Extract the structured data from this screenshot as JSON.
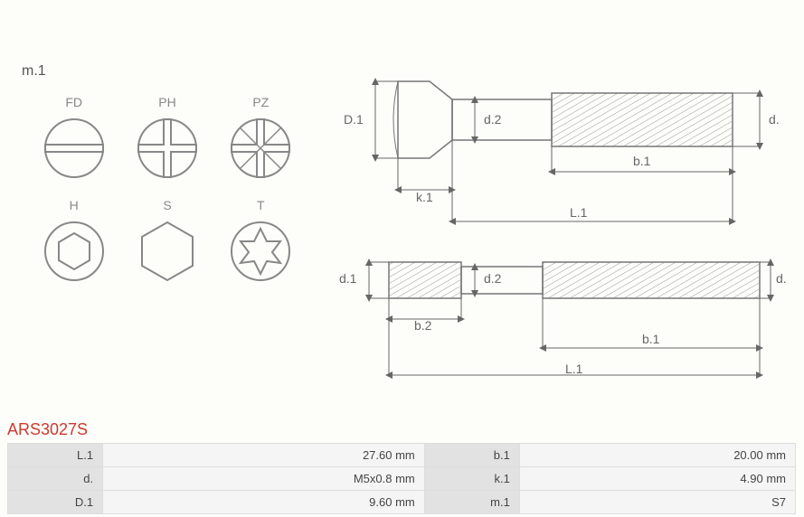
{
  "section_label": "m.1",
  "product_code": "ARS3027S",
  "drive_types": {
    "row1": [
      {
        "code": "FD",
        "name": "flat-drive"
      },
      {
        "code": "PH",
        "name": "phillips-drive"
      },
      {
        "code": "PZ",
        "name": "pozidriv-drive"
      }
    ],
    "row2": [
      {
        "code": "H",
        "name": "hex-socket-drive"
      },
      {
        "code": "S",
        "name": "hex-external-drive"
      },
      {
        "code": "T",
        "name": "torx-drive"
      }
    ]
  },
  "technical_diagram": {
    "labels": {
      "D1": "D.1",
      "d2": "d.2",
      "d": "d.",
      "d1": "d.1",
      "k1": "k.1",
      "b1": "b.1",
      "b2": "b.2",
      "L1": "L.1"
    },
    "colors": {
      "stroke": "#777777",
      "hatch": "#999999",
      "text": "#666666",
      "arrow": "#666666"
    },
    "line_width": 1,
    "background": "#fdfdfa"
  },
  "specs": [
    {
      "k1": "L.1",
      "v1": "27.60 mm",
      "k2": "b.1",
      "v2": "20.00 mm"
    },
    {
      "k1": "d.",
      "v1": "M5x0.8 mm",
      "k2": "k.1",
      "v2": "4.90 mm"
    },
    {
      "k1": "D.1",
      "v1": "9.60 mm",
      "k2": "m.1",
      "v2": "S7"
    }
  ]
}
